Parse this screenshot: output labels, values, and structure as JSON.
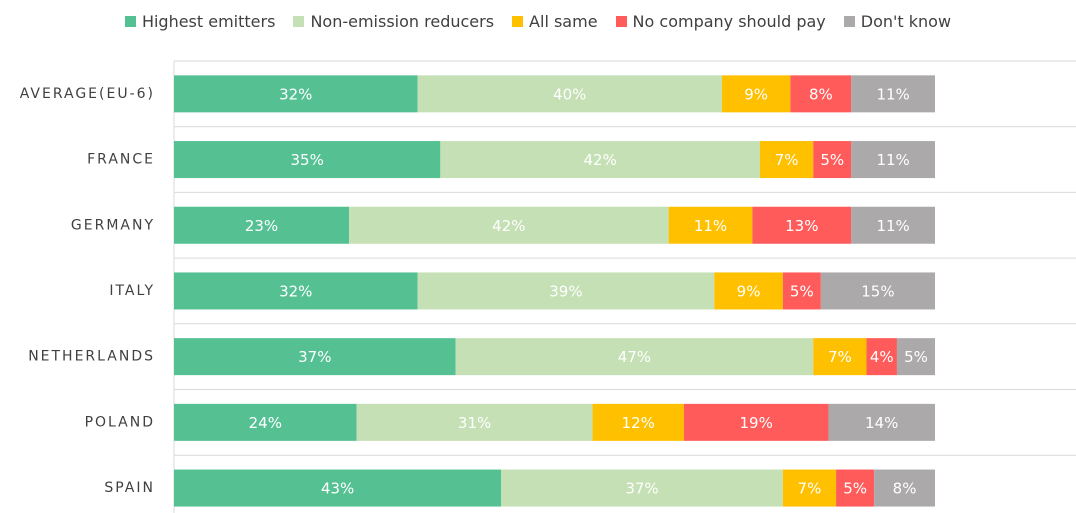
{
  "chart_data": {
    "type": "stacked-bar-horizontal",
    "categories": [
      "AVERAGE(EU-6)",
      "FRANCE",
      "GERMANY",
      "ITALY",
      "NETHERLANDS",
      "POLAND",
      "SPAIN"
    ],
    "xlim": [
      0,
      100
    ],
    "legend": "top",
    "series": [
      {
        "name": "Highest emitters",
        "color": "#55c193",
        "values": [
          32,
          35,
          23,
          32,
          37,
          24,
          43
        ],
        "value_labels": [
          "32%",
          "35%",
          "23%",
          "32%",
          "37%",
          "24%",
          "43%"
        ]
      },
      {
        "name": "Non-emission reducers",
        "color": "#c5e0b4",
        "values": [
          40,
          42,
          42,
          39,
          47,
          31,
          37
        ],
        "value_labels": [
          "40%",
          "42%",
          "42%",
          "39%",
          "47%",
          "31%",
          "37%"
        ]
      },
      {
        "name": "All same",
        "color": "#ffc000",
        "values": [
          9,
          7,
          11,
          9,
          7,
          12,
          7
        ],
        "value_labels": [
          "9%",
          "7%",
          "11%",
          "9%",
          "7%",
          "12%",
          "7%"
        ]
      },
      {
        "name": "No company should pay",
        "color": "#ff5b5b",
        "values": [
          8,
          5,
          13,
          5,
          4,
          19,
          5
        ],
        "value_labels": [
          "8%",
          "5%",
          "13%",
          "5%",
          "4%",
          "19%",
          "5%"
        ]
      },
      {
        "name": "Don't know",
        "color": "#aba9a9",
        "values": [
          11,
          11,
          11,
          15,
          5,
          14,
          8
        ],
        "value_labels": [
          "11%",
          "11%",
          "11%",
          "15%",
          "5%",
          "14%",
          "8%"
        ]
      }
    ]
  }
}
